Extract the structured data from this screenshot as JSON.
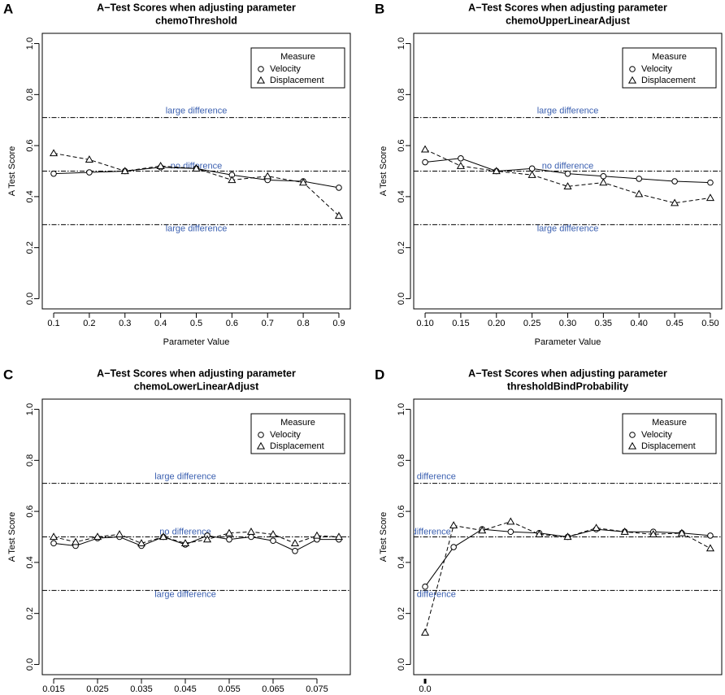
{
  "chart_data": [
    {
      "type": "line",
      "panel_label": "A",
      "title_lines": [
        "A−Test Scores when adjusting parameter",
        "chemoThreshold"
      ],
      "x_label": "Parameter Value",
      "y_label": "A Test Score",
      "legend_title": "Measure",
      "legend": "top-right",
      "x": [
        0.1,
        0.2,
        0.3,
        0.4,
        0.5,
        0.6,
        0.7,
        0.8,
        0.9
      ],
      "series": [
        {
          "name": "Velocity",
          "color": "#000000",
          "line_style": "solid",
          "marker": "circle",
          "values": [
            0.49,
            0.495,
            0.5,
            0.515,
            0.51,
            0.485,
            0.465,
            0.46,
            0.435
          ]
        },
        {
          "name": "Displacement",
          "color": "#000000",
          "line_style": "dashed",
          "marker": "triangle",
          "values": [
            0.57,
            0.545,
            0.5,
            0.52,
            0.51,
            0.465,
            0.48,
            0.455,
            0.325
          ]
        }
      ],
      "ref_lines": [
        {
          "value": 0.71,
          "label": "large difference"
        },
        {
          "value": 0.5,
          "label": "no difference"
        },
        {
          "value": 0.29,
          "label": "large difference"
        }
      ],
      "xlim": [
        0.068,
        0.932
      ],
      "xticks": [
        0.1,
        0.2,
        0.3,
        0.4,
        0.5,
        0.6,
        0.7,
        0.8,
        0.9
      ],
      "ylim": [
        -0.04,
        1.04
      ],
      "yticks": [
        {
          "value": 0,
          "label": "0.0"
        },
        0.2,
        0.4,
        0.6,
        0.8,
        {
          "value": 1,
          "label": "1.0"
        }
      ]
    },
    {
      "type": "line",
      "panel_label": "B",
      "title_lines": [
        "A−Test Scores when adjusting parameter",
        "chemoUpperLinearAdjust"
      ],
      "x_label": "Parameter Value",
      "y_label": "A Test Score",
      "legend_title": "Measure",
      "legend": "top-right",
      "x": [
        0.1,
        0.15,
        0.2,
        0.25,
        0.3,
        0.35,
        0.4,
        0.45,
        0.5
      ],
      "series": [
        {
          "name": "Velocity",
          "color": "#000000",
          "line_style": "solid",
          "marker": "circle",
          "values": [
            0.535,
            0.55,
            0.5,
            0.51,
            0.49,
            0.48,
            0.47,
            0.46,
            0.455
          ]
        },
        {
          "name": "Displacement",
          "color": "#000000",
          "line_style": "dashed",
          "marker": "triangle",
          "values": [
            0.585,
            0.52,
            0.5,
            0.485,
            0.44,
            0.455,
            0.41,
            0.375,
            0.395
          ]
        }
      ],
      "ref_lines": [
        {
          "value": 0.71,
          "label": "large difference"
        },
        {
          "value": 0.5,
          "label": "no difference"
        },
        {
          "value": 0.29,
          "label": "large difference"
        }
      ],
      "xlim": [
        0.084,
        0.516
      ],
      "xticks": [
        {
          "value": 0.1,
          "label": "0.10"
        },
        0.15,
        {
          "value": 0.2,
          "label": "0.20"
        },
        0.25,
        {
          "value": 0.3,
          "label": "0.30"
        },
        0.35,
        {
          "value": 0.4,
          "label": "0.40"
        },
        0.45,
        {
          "value": 0.5,
          "label": "0.50"
        }
      ],
      "ylim": [
        -0.04,
        1.04
      ],
      "yticks": [
        {
          "value": 0,
          "label": "0.0"
        },
        0.2,
        0.4,
        0.6,
        0.8,
        {
          "value": 1,
          "label": "1.0"
        }
      ]
    },
    {
      "type": "line",
      "panel_label": "C",
      "title_lines": [
        "A−Test Scores when adjusting parameter",
        "chemoLowerLinearAdjust"
      ],
      "y_label": "A Test Score",
      "legend_title": "Measure",
      "legend": "top-right",
      "x": [
        0.015,
        0.02,
        0.025,
        0.03,
        0.035,
        0.04,
        0.045,
        0.05,
        0.055,
        0.06,
        0.065,
        0.07,
        0.075,
        0.08
      ],
      "series": [
        {
          "name": "Velocity",
          "color": "#000000",
          "line_style": "solid",
          "marker": "circle",
          "values": [
            0.475,
            0.465,
            0.495,
            0.5,
            0.465,
            0.5,
            0.47,
            0.505,
            0.49,
            0.5,
            0.485,
            0.445,
            0.49,
            0.49
          ]
        },
        {
          "name": "Displacement",
          "color": "#000000",
          "line_style": "dashed",
          "marker": "triangle",
          "values": [
            0.5,
            0.48,
            0.5,
            0.51,
            0.475,
            0.5,
            0.475,
            0.49,
            0.515,
            0.52,
            0.51,
            0.475,
            0.505,
            0.5
          ]
        }
      ],
      "ref_lines": [
        {
          "value": 0.71,
          "label": "large difference"
        },
        {
          "value": 0.5,
          "label": "no difference"
        },
        {
          "value": 0.29,
          "label": "large difference"
        }
      ],
      "xlim": [
        0.0124,
        0.0826
      ],
      "xticks": [
        0.015,
        0.025,
        0.035,
        0.045,
        0.055,
        0.065,
        0.075
      ],
      "ylim": [
        -0.04,
        1.04
      ],
      "yticks": [
        {
          "value": 0,
          "label": "0.0"
        },
        0.2,
        0.4,
        0.6,
        0.8,
        {
          "value": 1,
          "label": "1.0"
        }
      ]
    },
    {
      "type": "line",
      "panel_label": "D",
      "title_lines": [
        "A−Test Scores when adjusting parameter",
        "thresholdBindProbability"
      ],
      "y_label": "A Test Score",
      "legend_title": "Measure",
      "legend": "top-right",
      "x": [
        0,
        0.1,
        0.2,
        0.3,
        0.4,
        0.5,
        0.6,
        0.7,
        0.8,
        0.9,
        1.0
      ],
      "series": [
        {
          "name": "Velocity",
          "color": "#000000",
          "line_style": "solid",
          "marker": "circle",
          "values": [
            0.305,
            0.46,
            0.53,
            0.52,
            0.515,
            0.5,
            0.53,
            0.52,
            0.52,
            0.515,
            0.505
          ]
        },
        {
          "name": "Displacement",
          "color": "#000000",
          "line_style": "dashed",
          "marker": "triangle",
          "values": [
            0.125,
            0.545,
            0.525,
            0.56,
            0.51,
            0.5,
            0.535,
            0.52,
            0.51,
            0.515,
            0.455
          ]
        }
      ],
      "ref_lines": [
        {
          "value": 0.71,
          "label": "large difference"
        },
        {
          "value": 0.5,
          "label": "no difference"
        },
        {
          "value": 0.29,
          "label": "large difference"
        }
      ],
      "xlim": [
        -0.04,
        1.04
      ],
      "xticks": [
        {
          "value": 0,
          "label": "0.0"
        }
      ],
      "ylim": [
        -0.04,
        1.04
      ],
      "yticks": [
        {
          "value": 0,
          "label": "0.0"
        },
        0.2,
        0.4,
        0.6,
        0.8,
        {
          "value": 1,
          "label": "1.0"
        }
      ]
    }
  ]
}
